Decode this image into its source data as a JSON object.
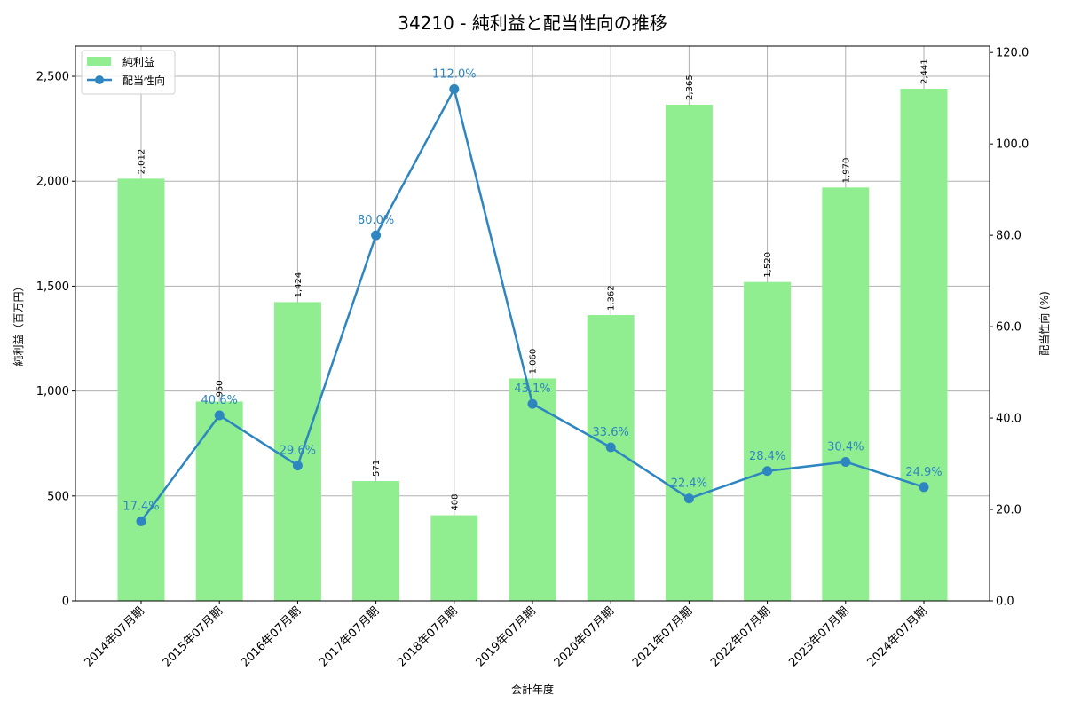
{
  "title": "34210 - 純利益と配当性向の推移",
  "colors": {
    "bar": "#90ee90",
    "line": "#2e86c1",
    "grid": "#b0b0b0",
    "axis": "#000000"
  },
  "legend": {
    "items": [
      {
        "label": "純利益",
        "type": "bar"
      },
      {
        "label": "配当性向",
        "type": "line"
      }
    ]
  },
  "axes": {
    "x_label": "会計年度",
    "y_left_label": "純利益（百万円）",
    "y_right_label": "配当性向 (%)",
    "y_left_ticks": [
      "0",
      "500",
      "1,000",
      "1,500",
      "2,000",
      "2,500"
    ],
    "y_right_ticks": [
      "0.0",
      "20.0",
      "40.0",
      "60.0",
      "80.0",
      "100.0",
      "120.0"
    ]
  },
  "chart_data": {
    "type": "bar+line",
    "title": "34210 - 純利益と配当性向の推移",
    "xlabel": "会計年度",
    "ylabel": "純利益（百万円）",
    "ylabel_right": "配当性向 (%)",
    "categories": [
      "2014年07月期",
      "2015年07月期",
      "2016年07月期",
      "2017年07月期",
      "2018年07月期",
      "2019年07月期",
      "2020年07月期",
      "2021年07月期",
      "2022年07月期",
      "2023年07月期",
      "2024年07月期"
    ],
    "series": [
      {
        "name": "純利益",
        "type": "bar",
        "axis": "left",
        "values": [
          2012,
          950,
          1424,
          571,
          408,
          1060,
          1362,
          2365,
          1520,
          1970,
          2441
        ],
        "labels": [
          "2,012",
          "950",
          "1,424",
          "571",
          "408",
          "1,060",
          "1,362",
          "2,365",
          "1,520",
          "1,970",
          "2,441"
        ]
      },
      {
        "name": "配当性向",
        "type": "line",
        "axis": "right",
        "values": [
          17.4,
          40.6,
          29.6,
          80.0,
          112.0,
          43.1,
          33.6,
          22.4,
          28.4,
          30.4,
          24.9
        ],
        "labels": [
          "17.4%",
          "40.6%",
          "29.6%",
          "80.0%",
          "112.0%",
          "43.1%",
          "33.6%",
          "22.4%",
          "28.4%",
          "30.4%",
          "24.9%"
        ]
      }
    ],
    "ylim": [
      0,
      2644
    ],
    "ylim_right": [
      0,
      121.4
    ],
    "y_ticks": [
      0,
      500,
      1000,
      1500,
      2000,
      2500
    ],
    "y_right_ticks": [
      0,
      20,
      40,
      60,
      80,
      100,
      120
    ],
    "grid": true,
    "legend_position": "upper left"
  }
}
